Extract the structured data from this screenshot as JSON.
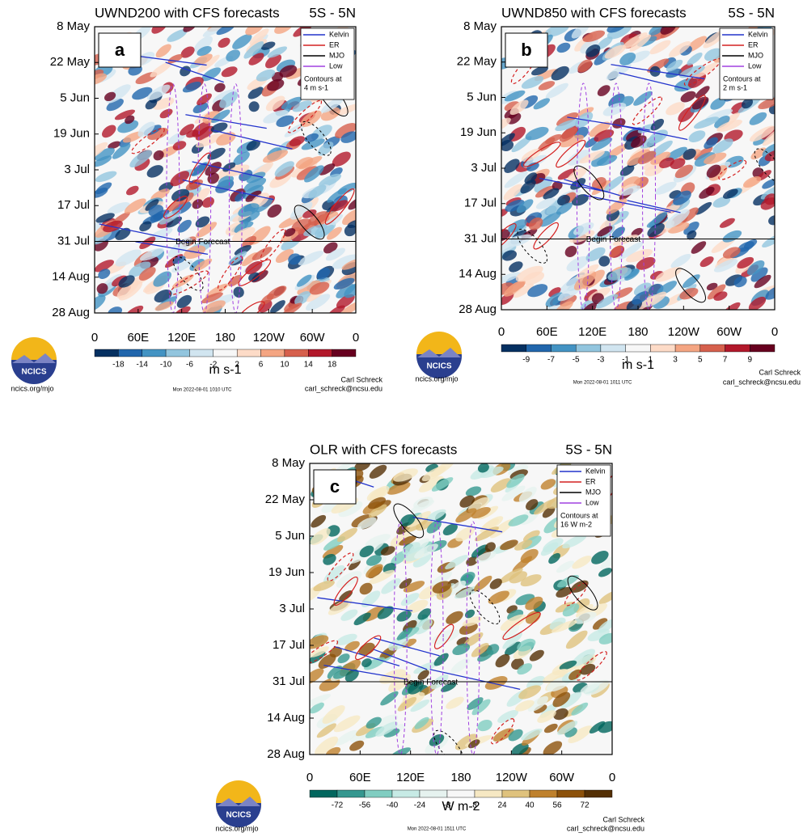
{
  "panels": [
    {
      "label": "a",
      "title": "UWND200 with CFS forecasts",
      "region": "5S - 5N",
      "y_labels": [
        "8 May",
        "22 May",
        "5 Jun",
        "19 Jun",
        "3 Jul",
        "17 Jul",
        "31 Jul",
        "14 Aug",
        "28 Aug"
      ],
      "x_labels": [
        "0",
        "60E",
        "120E",
        "180",
        "120W",
        "60W",
        "0"
      ],
      "colorbar_labels": [
        "-18",
        "-14",
        "-10",
        "-6",
        "-2",
        "2",
        "6",
        "10",
        "14",
        "18"
      ],
      "colorbar_colors": [
        "#053061",
        "#2166ac",
        "#4393c3",
        "#92c5de",
        "#d1e5f0",
        "#f7f7f7",
        "#fddbc7",
        "#f4a582",
        "#d6604d",
        "#b2182b",
        "#67001f"
      ],
      "units": "m s-1",
      "legend": [
        "Kelvin",
        "ER",
        "MJO",
        "Low"
      ],
      "contour_note": [
        "Contours at",
        "4 m s-1"
      ],
      "forecast_label": "Begin Forecast",
      "timestamp": "Mon 2022-08-01 1010 UTC",
      "author": "Carl Schreck",
      "email": "carl_schreck@ncsu.edu",
      "site": "ncics.org/mjo",
      "logo": "NCICS"
    },
    {
      "label": "b",
      "title": "UWND850 with CFS forecasts",
      "region": "5S - 5N",
      "y_labels": [
        "8 May",
        "22 May",
        "5 Jun",
        "19 Jun",
        "3 Jul",
        "17 Jul",
        "31 Jul",
        "14 Aug",
        "28 Aug"
      ],
      "x_labels": [
        "0",
        "60E",
        "120E",
        "180",
        "120W",
        "60W",
        "0"
      ],
      "colorbar_labels": [
        "-9",
        "-7",
        "-5",
        "-3",
        "-1",
        "1",
        "3",
        "5",
        "7",
        "9"
      ],
      "colorbar_colors": [
        "#053061",
        "#2166ac",
        "#4393c3",
        "#92c5de",
        "#d1e5f0",
        "#f7f7f7",
        "#fddbc7",
        "#f4a582",
        "#d6604d",
        "#b2182b",
        "#67001f"
      ],
      "units": "m s-1",
      "legend": [
        "Kelvin",
        "ER",
        "MJO",
        "Low"
      ],
      "contour_note": [
        "Contours at",
        "2 m s-1"
      ],
      "forecast_label": "Begin Forecast",
      "timestamp": "Mon 2022-08-01 1011 UTC",
      "author": "Carl Schreck",
      "email": "carl_schreck@ncsu.edu",
      "site": "ncics.org/mjo",
      "logo": "NCICS"
    },
    {
      "label": "c",
      "title": "OLR with CFS forecasts",
      "region": "5S - 5N",
      "y_labels": [
        "8 May",
        "22 May",
        "5 Jun",
        "19 Jun",
        "3 Jul",
        "17 Jul",
        "31 Jul",
        "14 Aug",
        "28 Aug"
      ],
      "x_labels": [
        "0",
        "60E",
        "120E",
        "180",
        "120W",
        "60W",
        "0"
      ],
      "colorbar_labels": [
        "-72",
        "-56",
        "-40",
        "-24",
        "-8",
        "8",
        "24",
        "40",
        "56",
        "72"
      ],
      "colorbar_colors": [
        "#01665e",
        "#35978f",
        "#80cdc1",
        "#c7eae5",
        "#e6f2ef",
        "#f7f7f7",
        "#f6e8c3",
        "#dfc27d",
        "#bf812d",
        "#8c510a",
        "#543005"
      ],
      "units": "W m-2",
      "legend": [
        "Kelvin",
        "ER",
        "MJO",
        "Low"
      ],
      "contour_note": [
        "Contours at",
        "16 W m-2"
      ],
      "forecast_label": "Begin Forecast",
      "timestamp": "Mon 2022-08-01 1511 UTC",
      "author": "Carl Schreck",
      "email": "carl_schreck@ncsu.edu",
      "site": "ncics.org/mjo",
      "logo": "NCICS"
    }
  ]
}
